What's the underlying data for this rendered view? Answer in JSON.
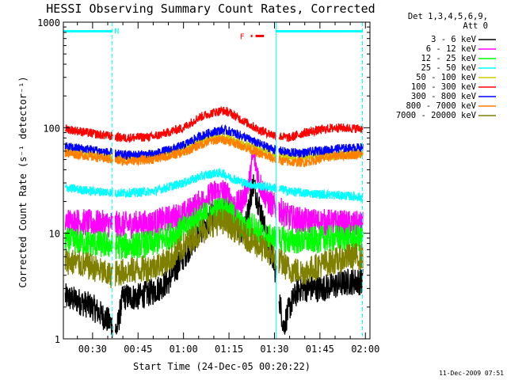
{
  "chart_data": {
    "type": "line",
    "title": "HESSI Observing Summary Count Rates, Corrected",
    "xlabel": "Start Time (24-Dec-05 00:20:22)",
    "ylabel": "Corrected Count Rate (s⁻¹ detector⁻¹)",
    "yscale": "log",
    "ylim": [
      1,
      1000
    ],
    "xlim_minutes": [
      20.37,
      121.5
    ],
    "x_ticks": [
      {
        "minute": 30,
        "label": "00:30"
      },
      {
        "minute": 45,
        "label": "00:45"
      },
      {
        "minute": 60,
        "label": "01:00"
      },
      {
        "minute": 75,
        "label": "01:15"
      },
      {
        "minute": 90,
        "label": "01:30"
      },
      {
        "minute": 105,
        "label": "01:45"
      },
      {
        "minute": 120,
        "label": "02:00"
      }
    ],
    "y_ticks": [
      {
        "value": 1,
        "label": "1"
      },
      {
        "value": 10,
        "label": "10"
      },
      {
        "value": 100,
        "label": "100"
      },
      {
        "value": 1000,
        "label": "1000"
      }
    ],
    "legend_header": [
      "Det 1,3,4,5,6,9,",
      "Att 0"
    ],
    "series": [
      {
        "name": "3 - 6 keV",
        "color": "#000000",
        "x": [
          21,
          25,
          30,
          35,
          38,
          40,
          45,
          50,
          55,
          60,
          65,
          70,
          73,
          75,
          78,
          80,
          83,
          85,
          88,
          90,
          93,
          95,
          98,
          100,
          105,
          110,
          115,
          119
        ],
        "y": [
          2.5,
          2.3,
          2.0,
          1.5,
          1.2,
          2.5,
          2.5,
          2.8,
          3.5,
          6,
          10,
          15,
          17,
          16,
          12,
          10,
          30,
          18,
          8,
          5,
          1.3,
          2,
          3,
          3,
          3,
          3.2,
          3.5,
          3.5
        ]
      },
      {
        "name": "6 - 12 keV",
        "color": "#ff00ff",
        "x": [
          21,
          30,
          40,
          50,
          60,
          65,
          70,
          73,
          75,
          77,
          79,
          80,
          82,
          83,
          85,
          88,
          90,
          95,
          100,
          110,
          119
        ],
        "y": [
          13,
          12.5,
          12,
          12.5,
          15,
          19,
          24,
          25,
          22,
          18,
          20,
          22,
          33,
          60,
          30,
          20,
          18,
          14,
          13,
          12.5,
          12
        ]
      },
      {
        "name": "12 - 25 keV",
        "color": "#00ff00",
        "x": [
          21,
          30,
          40,
          50,
          60,
          65,
          70,
          73,
          75,
          78,
          80,
          83,
          85,
          88,
          90,
          95,
          100,
          110,
          119
        ],
        "y": [
          8.5,
          8,
          7.5,
          8,
          11,
          14,
          16,
          17,
          16,
          13,
          11,
          12,
          10,
          9,
          9,
          8.5,
          8.5,
          9,
          9
        ]
      },
      {
        "name": "25 - 50 keV",
        "color": "#00ffff",
        "x": [
          21,
          30,
          40,
          50,
          60,
          65,
          70,
          73,
          75,
          80,
          85,
          90,
          95,
          100,
          110,
          119
        ],
        "y": [
          27,
          25,
          24,
          25,
          30,
          34,
          37,
          37,
          34,
          30,
          28,
          27,
          25,
          24,
          23,
          22
        ]
      },
      {
        "name": "50 - 100 keV",
        "color": "#cccc00",
        "x": [
          21,
          30,
          40,
          50,
          60,
          65,
          70,
          73,
          75,
          80,
          85,
          90,
          95,
          100,
          110,
          119
        ],
        "y": [
          61,
          56,
          52,
          54,
          63,
          75,
          81,
          82,
          80,
          70,
          62,
          56,
          52,
          52,
          55,
          57
        ]
      },
      {
        "name": "100 - 300 keV",
        "color": "#ff0000",
        "x": [
          21,
          30,
          40,
          50,
          60,
          65,
          70,
          73,
          75,
          80,
          85,
          90,
          95,
          100,
          110,
          119
        ],
        "y": [
          98,
          88,
          80,
          82,
          100,
          125,
          140,
          145,
          140,
          115,
          95,
          85,
          80,
          90,
          100,
          98
        ]
      },
      {
        "name": "300 - 800 keV",
        "color": "#0000ff",
        "x": [
          21,
          30,
          40,
          50,
          60,
          65,
          70,
          73,
          75,
          80,
          85,
          90,
          95,
          100,
          110,
          119
        ],
        "y": [
          66,
          62,
          55,
          56,
          68,
          82,
          92,
          95,
          93,
          82,
          70,
          62,
          58,
          58,
          63,
          65
        ]
      },
      {
        "name": "800 - 7000 keV",
        "color": "#ff8000",
        "x": [
          21,
          30,
          40,
          50,
          60,
          65,
          70,
          73,
          75,
          80,
          85,
          90,
          95,
          100,
          110,
          119
        ],
        "y": [
          58,
          53,
          48,
          50,
          58,
          68,
          76,
          77,
          75,
          66,
          57,
          50,
          47,
          47,
          54,
          56
        ]
      },
      {
        "name": "7000 - 20000 keV",
        "color": "#808000",
        "x": [
          21,
          30,
          35,
          40,
          45,
          50,
          55,
          60,
          65,
          70,
          73,
          75,
          78,
          80,
          85,
          90,
          95,
          100,
          105,
          110,
          115,
          119
        ],
        "y": [
          5.5,
          4.8,
          4.0,
          4.3,
          4.5,
          4.8,
          5.5,
          7.5,
          10,
          12.5,
          13,
          12,
          10.5,
          9.5,
          7.5,
          6,
          4.5,
          4.3,
          5,
          5.5,
          6,
          6
        ]
      }
    ],
    "annotations": {
      "night_bars": {
        "color": "#00ffff",
        "level": 820,
        "segments": [
          [
            20.37,
            36.5
          ],
          [
            90.5,
            119
          ]
        ],
        "night_label": "N",
        "night_label_minute": 37.2
      },
      "day_lines_minutes": [
        36.5,
        119
      ],
      "saa_lines_minutes": [
        90.5
      ],
      "flare_label": "F",
      "flare_color": "#ff0000",
      "flare_bar": [
        82.2,
        86.5
      ],
      "flare_level": 740
    },
    "grid": false,
    "legend_position": "right"
  },
  "timestamp": "11-Dec-2009 07:51"
}
